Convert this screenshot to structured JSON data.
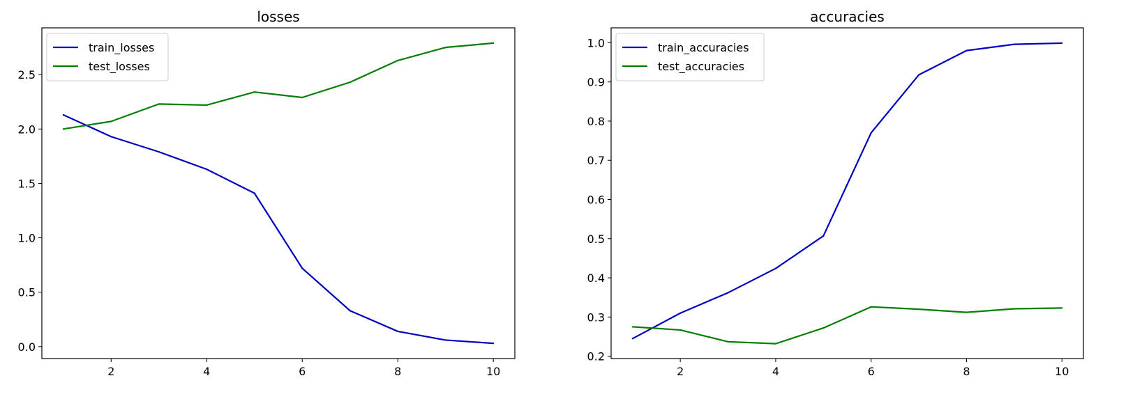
{
  "chart_data": [
    {
      "type": "line",
      "title": "losses",
      "xlabel": "",
      "ylabel": "",
      "x": [
        1,
        2,
        3,
        4,
        5,
        6,
        7,
        8,
        9,
        10
      ],
      "xlim": [
        0.55,
        10.45
      ],
      "ylim": [
        -0.11,
        2.93
      ],
      "xticks": [
        2,
        4,
        6,
        8,
        10
      ],
      "yticks": [
        0.0,
        0.5,
        1.0,
        1.5,
        2.0,
        2.5
      ],
      "ytick_labels": [
        "0.0",
        "0.5",
        "1.0",
        "1.5",
        "2.0",
        "2.5"
      ],
      "xtick_labels": [
        "2",
        "4",
        "6",
        "8",
        "10"
      ],
      "grid": false,
      "legend_position": "top-left",
      "series": [
        {
          "name": "train_losses",
          "color": "#0000bf",
          "values": [
            2.13,
            1.93,
            1.79,
            1.63,
            1.41,
            0.72,
            0.33,
            0.14,
            0.06,
            0.03
          ]
        },
        {
          "name": "test_losses",
          "color": "#007f00",
          "values": [
            2.0,
            2.07,
            2.23,
            2.22,
            2.34,
            2.29,
            2.43,
            2.63,
            2.75,
            2.79
          ]
        }
      ]
    },
    {
      "type": "line",
      "title": "accuracies",
      "xlabel": "",
      "ylabel": "",
      "x": [
        1,
        2,
        3,
        4,
        5,
        6,
        7,
        8,
        9,
        10
      ],
      "xlim": [
        0.55,
        10.45
      ],
      "ylim": [
        0.194,
        1.038
      ],
      "xticks": [
        2,
        4,
        6,
        8,
        10
      ],
      "yticks": [
        0.2,
        0.3,
        0.4,
        0.5,
        0.6,
        0.7,
        0.8,
        0.9,
        1.0
      ],
      "ytick_labels": [
        "0.2",
        "0.3",
        "0.4",
        "0.5",
        "0.6",
        "0.7",
        "0.8",
        "0.9",
        "1.0"
      ],
      "xtick_labels": [
        "2",
        "4",
        "6",
        "8",
        "10"
      ],
      "grid": false,
      "legend_position": "top-left",
      "series": [
        {
          "name": "train_accuracies",
          "color": "#0000bf",
          "values": [
            0.245,
            0.31,
            0.362,
            0.424,
            0.507,
            0.77,
            0.918,
            0.98,
            0.996,
            0.999
          ]
        },
        {
          "name": "test_accuracies",
          "color": "#007f00",
          "values": [
            0.275,
            0.267,
            0.237,
            0.232,
            0.272,
            0.326,
            0.32,
            0.312,
            0.321,
            0.323
          ]
        }
      ]
    }
  ]
}
